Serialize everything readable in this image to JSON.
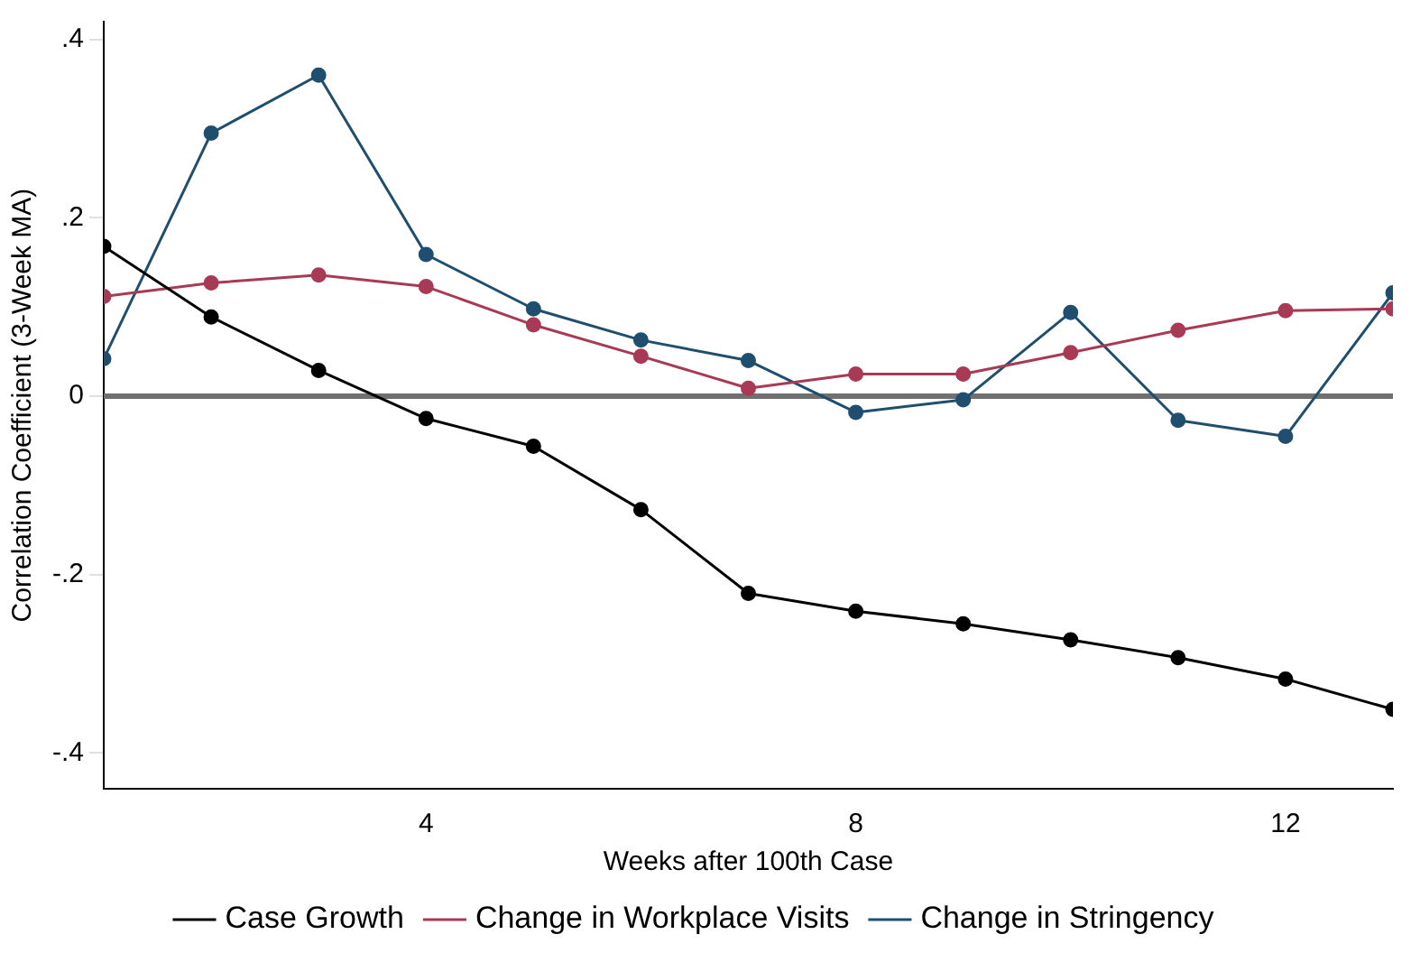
{
  "chart_data": {
    "type": "line",
    "xlabel": "Weeks after 100th Case",
    "ylabel": "Correlation Coefficient (3-Week MA)",
    "x": [
      1,
      2,
      3,
      4,
      5,
      6,
      7,
      8,
      9,
      10,
      11,
      12,
      13
    ],
    "xlim": [
      1,
      13
    ],
    "xticks": [
      4,
      8,
      12
    ],
    "ylim": [
      -0.44,
      0.42
    ],
    "yticks": [
      {
        "value": -0.4,
        "label": "-.4"
      },
      {
        "value": -0.2,
        "label": "-.2"
      },
      {
        "value": 0,
        "label": "0"
      },
      {
        "value": 0.2,
        "label": ".2"
      },
      {
        "value": 0.4,
        "label": ".4"
      }
    ],
    "series": [
      {
        "name": "Case Growth",
        "color": "#000000",
        "values": [
          0.168,
          0.089,
          0.029,
          -0.025,
          -0.056,
          -0.127,
          -0.221,
          -0.241,
          -0.255,
          -0.273,
          -0.293,
          -0.317,
          -0.351
        ]
      },
      {
        "name": "Change in Workplace Visits",
        "color": "#a83a55",
        "values": [
          0.112,
          0.127,
          0.136,
          0.123,
          0.08,
          0.045,
          0.009,
          0.025,
          0.025,
          0.049,
          0.074,
          0.096,
          0.098
        ]
      },
      {
        "name": "Change in Stringency",
        "color": "#1f4e6e",
        "values": [
          0.042,
          0.295,
          0.36,
          0.159,
          0.098,
          0.063,
          0.04,
          -0.018,
          -0.004,
          0.094,
          -0.027,
          -0.045,
          0.116
        ]
      }
    ],
    "ref_lines": [
      {
        "axis": "y",
        "value": 0,
        "color": "#707070"
      }
    ],
    "marker": "circle",
    "line_style": "solid",
    "grid": false,
    "legend": "bottom"
  }
}
